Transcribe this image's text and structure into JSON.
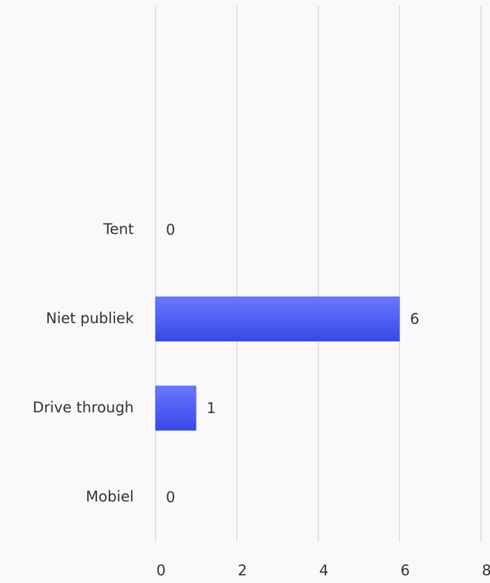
{
  "chart_data": {
    "type": "bar",
    "orientation": "horizontal",
    "categories": [
      null,
      null,
      "Tent",
      "Niet publiek",
      "Drive through",
      "Mobiel"
    ],
    "values": [
      null,
      null,
      0,
      6,
      1,
      0
    ],
    "color": "#4657f0",
    "xlim": [
      0,
      8
    ],
    "xticks": [
      0,
      2,
      4,
      6,
      8
    ],
    "grid": true
  }
}
